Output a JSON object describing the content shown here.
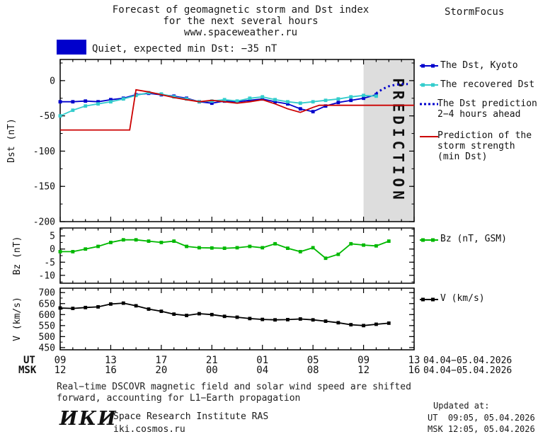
{
  "header": {
    "title_line1": "Forecast of geomagnetic storm and Dst index",
    "title_line2": "for the next several hours",
    "title_line3": "www.spaceweather.ru",
    "brand": "StormFocus"
  },
  "status": {
    "label": "Quiet, expected min Dst: −35 nT",
    "swatch_color": "#0000CC"
  },
  "legend": {
    "kyoto": "The Dst, Kyoto",
    "recovered": "The recovered Dst",
    "prediction_l1": "The Dst prediction",
    "prediction_l2": "2−4 hours ahead",
    "storm_l1": "Prediction of the",
    "storm_l2": "storm strength",
    "storm_l3": "(min Dst)",
    "bz": "Bz (nT, GSM)",
    "v": "V (km/s)"
  },
  "axis": {
    "xlim": [
      0,
      28
    ],
    "tick_hours": [
      0,
      4,
      8,
      12,
      16,
      20,
      24,
      28
    ],
    "ut_labels": [
      "09",
      "13",
      "17",
      "21",
      "01",
      "05",
      "09",
      "13"
    ],
    "msk_labels": [
      "12",
      "16",
      "20",
      "00",
      "04",
      "08",
      "12",
      "16"
    ],
    "ut_header": "UT",
    "msk_header": "MSK",
    "date_range_ut": "04.04−05.04.2026",
    "date_range_msk": "04.04−05.04.2026"
  },
  "caption": {
    "line1": "Real−time DSCOVR magnetic field and solar wind speed are shifted",
    "line2": "forward, accounting for L1−Earth propagation"
  },
  "footer": {
    "logo": "ИКИ",
    "institute": "Space Research Institute RAS",
    "site": "iki.cosmos.ru",
    "updated_label": "Updated at:",
    "updated_ut": "UT  09:05, 05.04.2026",
    "updated_msk": "MSK 12:05, 05.04.2026"
  },
  "chart_data": [
    {
      "type": "line",
      "title": "Dst index observed and predicted",
      "ylabel": "Dst (nT)",
      "ylim": [
        -200,
        30
      ],
      "yticks": [
        0,
        -50,
        -100,
        -150,
        -200
      ],
      "yminor": 25,
      "prediction_region": {
        "from": 24,
        "to": 28,
        "label": "PREDICTION",
        "fill": "#DDDDDD",
        "text_color": "#BBBBBB"
      },
      "series": [
        {
          "name": "The Dst, Kyoto",
          "color": "#0000CC",
          "style": "solid",
          "marker": "square",
          "x": [
            0,
            1,
            2,
            3,
            4,
            5,
            6,
            7,
            8,
            9,
            10,
            11,
            12,
            13,
            14,
            15,
            16,
            17,
            18,
            19,
            20,
            21,
            22,
            23,
            24,
            25
          ],
          "y": [
            -30,
            -30,
            -29,
            -30,
            -27,
            -25,
            -20,
            -18,
            -20,
            -22,
            -25,
            -30,
            -32,
            -29,
            -30,
            -28,
            -26,
            -30,
            -33,
            -40,
            -44,
            -36,
            -31,
            -28,
            -25,
            -20
          ]
        },
        {
          "name": "The recovered Dst",
          "color": "#33CCCC",
          "style": "solid",
          "marker": "square",
          "x": [
            0,
            1,
            2,
            3,
            4,
            5,
            6,
            7,
            8,
            9,
            10,
            11,
            12,
            13,
            14,
            15,
            16,
            17,
            18,
            19,
            20,
            21,
            22,
            23,
            24,
            25
          ],
          "y": [
            -50,
            -42,
            -36,
            -33,
            -30,
            -26,
            -21,
            -17,
            -19,
            -23,
            -26,
            -30,
            -29,
            -27,
            -29,
            -25,
            -23,
            -27,
            -30,
            -32,
            -30,
            -28,
            -26,
            -23,
            -21,
            -22
          ]
        },
        {
          "name": "The Dst prediction 2−4 hours ahead",
          "color": "#0000CC",
          "style": "dotted",
          "marker": "none",
          "x": [
            25,
            25.5,
            26,
            26.5,
            27,
            27.5
          ],
          "y": [
            -18,
            -12,
            -8,
            -6,
            -5,
            -5
          ]
        },
        {
          "name": "Prediction of the storm strength (min Dst)",
          "color": "#CC0000",
          "style": "solid",
          "marker": "none",
          "x": [
            0,
            5.5,
            6,
            7,
            8,
            9,
            10,
            11,
            12,
            13,
            14,
            15,
            16,
            17,
            18,
            19,
            20,
            20.5,
            28
          ],
          "y": [
            -70,
            -70,
            -13,
            -16,
            -20,
            -24,
            -27,
            -30,
            -28,
            -30,
            -32,
            -30,
            -27,
            -33,
            -40,
            -45,
            -38,
            -35,
            -35
          ]
        }
      ]
    },
    {
      "type": "line",
      "title": "Interplanetary magnetic field Bz",
      "ylabel": "Bz (nT)",
      "ylim": [
        -13,
        8
      ],
      "yticks": [
        5,
        0,
        -5,
        -10
      ],
      "yminor": 2.5,
      "series": [
        {
          "name": "Bz (nT, GSM)",
          "color": "#00B800",
          "style": "solid",
          "marker": "square",
          "x": [
            0,
            1,
            2,
            3,
            4,
            5,
            6,
            7,
            8,
            9,
            10,
            11,
            12,
            13,
            14,
            15,
            16,
            17,
            18,
            19,
            20,
            21,
            22,
            23,
            24,
            25,
            26
          ],
          "y": [
            -1,
            -1,
            0,
            1,
            2.5,
            3.5,
            3.5,
            3,
            2.5,
            3,
            1,
            0.5,
            0.4,
            0.3,
            0.5,
            1,
            0.5,
            2,
            0.3,
            -1,
            0.5,
            -3.5,
            -2,
            2,
            1.5,
            1.2,
            3
          ]
        }
      ]
    },
    {
      "type": "line",
      "title": "Solar wind speed",
      "ylabel": "V (km/s)",
      "ylim": [
        440,
        720
      ],
      "yticks": [
        700,
        650,
        600,
        550,
        500,
        450
      ],
      "yminor": 25,
      "series": [
        {
          "name": "V (km/s)",
          "color": "#000000",
          "style": "solid",
          "marker": "square",
          "x": [
            0,
            1,
            2,
            3,
            4,
            5,
            6,
            7,
            8,
            9,
            10,
            11,
            12,
            13,
            14,
            15,
            16,
            17,
            18,
            19,
            20,
            21,
            22,
            23,
            24,
            25,
            26
          ],
          "y": [
            630,
            628,
            632,
            635,
            648,
            652,
            640,
            625,
            615,
            602,
            596,
            604,
            600,
            592,
            588,
            582,
            578,
            576,
            577,
            580,
            576,
            570,
            563,
            554,
            550,
            556,
            561
          ]
        }
      ]
    }
  ]
}
